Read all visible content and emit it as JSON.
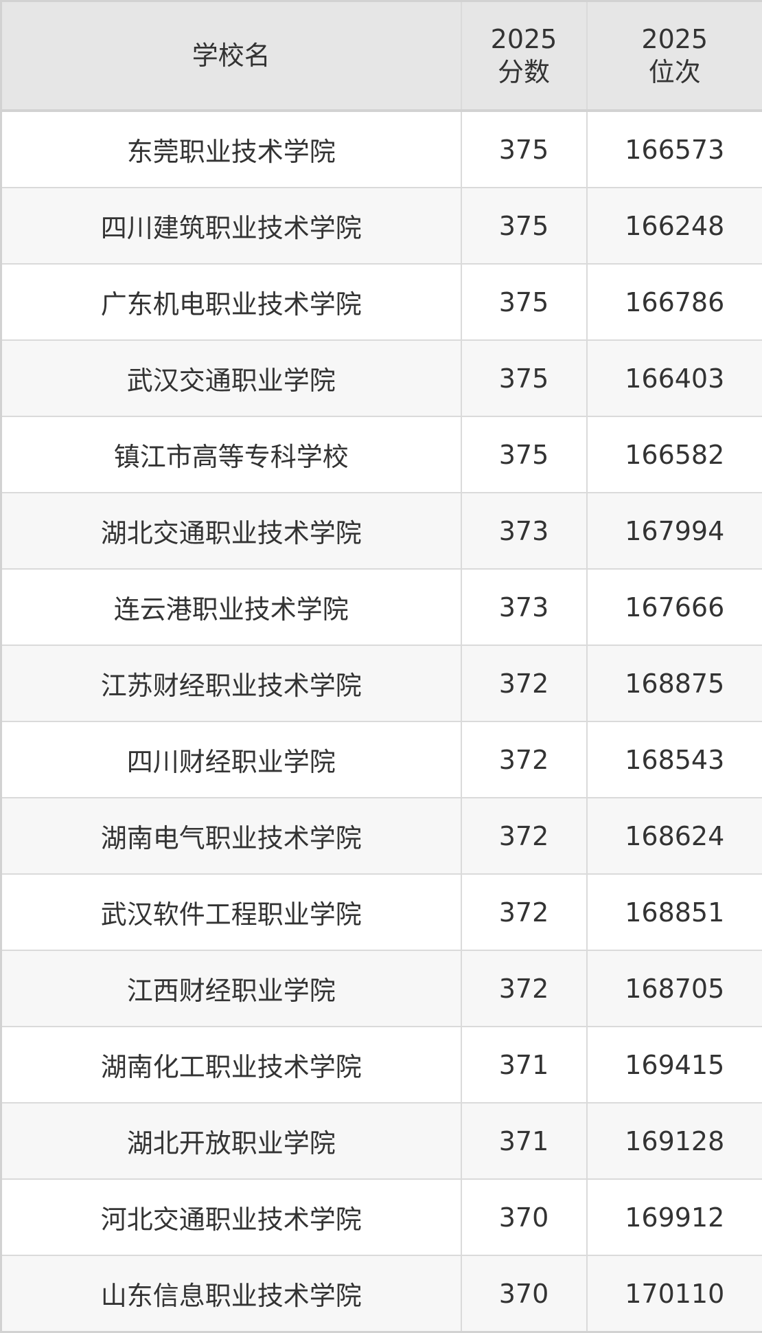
{
  "table": {
    "headers": [
      {
        "line1": "学校名",
        "line2": ""
      },
      {
        "line1": "2025",
        "line2": "分数"
      },
      {
        "line1": "2025",
        "line2": "位次"
      }
    ],
    "rows": [
      {
        "school": "东莞职业技术学院",
        "score": "375",
        "rank": "166573"
      },
      {
        "school": "四川建筑职业技术学院",
        "score": "375",
        "rank": "166248"
      },
      {
        "school": "广东机电职业技术学院",
        "score": "375",
        "rank": "166786"
      },
      {
        "school": "武汉交通职业学院",
        "score": "375",
        "rank": "166403"
      },
      {
        "school": "镇江市高等专科学校",
        "score": "375",
        "rank": "166582"
      },
      {
        "school": "湖北交通职业技术学院",
        "score": "373",
        "rank": "167994"
      },
      {
        "school": "连云港职业技术学院",
        "score": "373",
        "rank": "167666"
      },
      {
        "school": "江苏财经职业技术学院",
        "score": "372",
        "rank": "168875"
      },
      {
        "school": "四川财经职业学院",
        "score": "372",
        "rank": "168543"
      },
      {
        "school": "湖南电气职业技术学院",
        "score": "372",
        "rank": "168624"
      },
      {
        "school": "武汉软件工程职业学院",
        "score": "372",
        "rank": "168851"
      },
      {
        "school": "江西财经职业学院",
        "score": "372",
        "rank": "168705"
      },
      {
        "school": "湖南化工职业技术学院",
        "score": "371",
        "rank": "169415"
      },
      {
        "school": "湖北开放职业学院",
        "score": "371",
        "rank": "169128"
      },
      {
        "school": "河北交通职业技术学院",
        "score": "370",
        "rank": "169912"
      },
      {
        "school": "山东信息职业技术学院",
        "score": "370",
        "rank": "170110"
      }
    ]
  }
}
